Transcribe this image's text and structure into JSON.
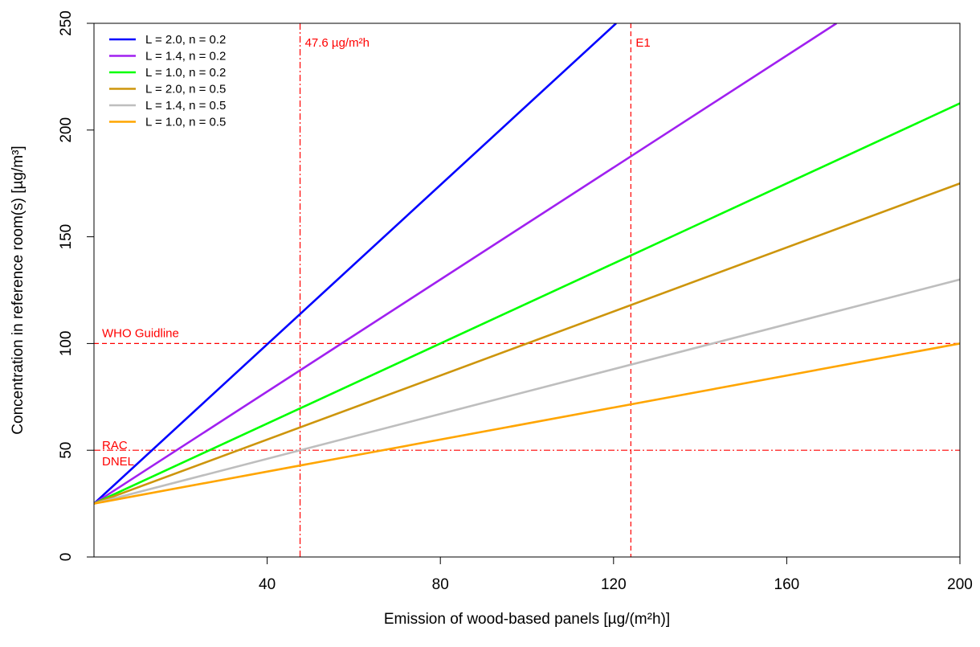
{
  "chart_data": {
    "type": "line",
    "xlabel": "Emission of wood-based panels  [µg/(m²h)]",
    "ylabel": "Concentration in reference room(s)  [µg/m³]",
    "xlim": [
      0,
      200
    ],
    "ylim": [
      0,
      250
    ],
    "x_ticks": [
      40,
      80,
      120,
      160,
      200
    ],
    "y_ticks": [
      0,
      50,
      100,
      150,
      200,
      250
    ],
    "grid": false,
    "legend_position": "top-left",
    "series": [
      {
        "name": "L = 2.0, n = 0.2",
        "color": "#0000ff",
        "x": [
          0,
          120.6
        ],
        "y": [
          25,
          250
        ]
      },
      {
        "name": "L = 1.4, n = 0.2",
        "color": "#a020f0",
        "x": [
          0,
          171.5
        ],
        "y": [
          25,
          250
        ]
      },
      {
        "name": "L = 1.0, n = 0.2",
        "color": "#00ff00",
        "x": [
          0,
          200
        ],
        "y": [
          25,
          212.5
        ]
      },
      {
        "name": "L = 2.0, n = 0.5",
        "color": "#cd950c",
        "x": [
          0,
          200
        ],
        "y": [
          25,
          175
        ]
      },
      {
        "name": "L = 1.4, n = 0.5",
        "color": "#bebebe",
        "x": [
          0,
          200
        ],
        "y": [
          25,
          130
        ]
      },
      {
        "name": "L = 1.0, n = 0.5",
        "color": "#ffa500",
        "x": [
          0,
          200
        ],
        "y": [
          25,
          100
        ]
      }
    ],
    "reference_lines": [
      {
        "orientation": "vertical",
        "value": 47.6,
        "label": "47.6 µg/m²h",
        "style": "dash-dot",
        "color": "#ff0000"
      },
      {
        "orientation": "vertical",
        "value": 124,
        "label": "E1",
        "style": "dashed",
        "color": "#ff0000"
      },
      {
        "orientation": "horizontal",
        "value": 100,
        "label": "WHO Guidline",
        "style": "dashed",
        "color": "#ff0000"
      },
      {
        "orientation": "horizontal",
        "value": 50,
        "label": "RAC\nDNEL",
        "label_lines": [
          "RAC",
          "DNEL"
        ],
        "style": "dash-dot",
        "color": "#ff0000"
      }
    ]
  }
}
